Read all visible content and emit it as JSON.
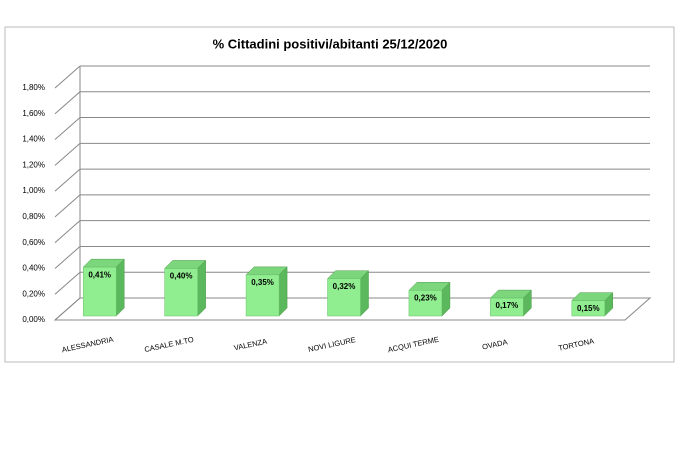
{
  "chart_data": {
    "type": "bar3d",
    "title": "% Cittadini positivi/abitanti 25/12/2020",
    "categories": [
      "ALESSANDRIA",
      "CASALE M.TO",
      "VALENZA",
      "NOVI LIGURE",
      "ACQUI TERME",
      "OVADA",
      "TORTONA"
    ],
    "values": [
      0.41,
      0.4,
      0.35,
      0.32,
      0.23,
      0.17,
      0.15
    ],
    "value_labels": [
      "0,41%",
      "0,40%",
      "0,35%",
      "0,32%",
      "0,23%",
      "0,17%",
      "0,15%"
    ],
    "color": "#90ee90",
    "ylim": [
      0,
      1.8
    ],
    "yticks": [
      {
        "value": 0,
        "label": "0,00%"
      },
      {
        "value": 0.2,
        "label": "0,20%"
      },
      {
        "value": 0.4,
        "label": "0,40%"
      },
      {
        "value": 0.6,
        "label": "0,60%"
      },
      {
        "value": 0.8,
        "label": "0,80%"
      },
      {
        "value": 1.0,
        "label": "1,00%"
      },
      {
        "value": 1.2,
        "label": "1,20%"
      },
      {
        "value": 1.4,
        "label": "1,40%"
      },
      {
        "value": 1.6,
        "label": "1,60%"
      },
      {
        "value": 1.8,
        "label": "1,80%"
      }
    ],
    "grid": true
  }
}
